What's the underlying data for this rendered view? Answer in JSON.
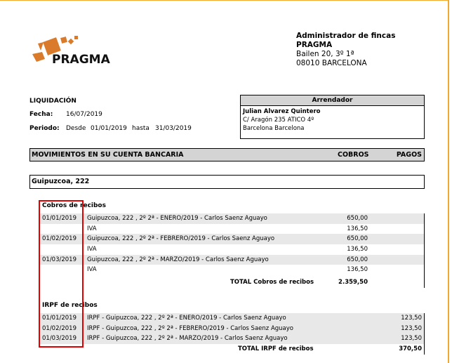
{
  "logo": {
    "text": "PRAGMA",
    "color": "#d97b2b"
  },
  "company": {
    "line1": "Administrador de fincas",
    "line2": "PRAGMA",
    "line3": "Bailen 20, 3º 1ª",
    "line4": "08010 BARCELONA"
  },
  "doc": {
    "title": "LIQUIDACIÓN",
    "fecha_label": "Fecha:",
    "fecha": "16/07/2019",
    "periodo_label": "Periodo:",
    "desde_label": "Desde",
    "desde": "01/01/2019",
    "hasta_label": "hasta",
    "hasta": "31/03/2019"
  },
  "arrendador": {
    "header": "Arrendador",
    "name": "Julian Alvarez Quintero",
    "address": "C/ Aragón 235 ATICO 4º",
    "city": "Barcelona Barcelona"
  },
  "movimientos": {
    "title": "MOVIMIENTOS EN SU CUENTA BANCARIA",
    "cobros": "COBROS",
    "pagos": "PAGOS"
  },
  "property": "Guipuzcoa, 222",
  "cobros": {
    "title": "Cobros de recibos",
    "rows": [
      {
        "date": "01/01/2019",
        "desc": "Guipuzcoa, 222 , 2º 2ª - ENERO/2019 - Carlos Saenz Aguayo",
        "amount": "650,00"
      },
      {
        "date": "",
        "desc": "IVA",
        "amount": "136,50"
      },
      {
        "date": "01/02/2019",
        "desc": "Guipuzcoa, 222 , 2º 2ª - FEBRERO/2019 - Carlos Saenz Aguayo",
        "amount": "650,00"
      },
      {
        "date": "",
        "desc": "IVA",
        "amount": "136,50"
      },
      {
        "date": "01/03/2019",
        "desc": "Guipuzcoa, 222 , 2º 2ª - MARZO/2019 - Carlos Saenz Aguayo",
        "amount": "650,00"
      },
      {
        "date": "",
        "desc": "IVA",
        "amount": "136,50"
      }
    ],
    "total_label": "TOTAL Cobros de recibos",
    "total": "2.359,50"
  },
  "irpf": {
    "title": "IRPF de recibos",
    "rows": [
      {
        "date": "01/01/2019",
        "desc": "IRPF - Guipuzcoa, 222 , 2º 2ª - ENERO/2019 - Carlos Saenz Aguayo",
        "amount": "123,50"
      },
      {
        "date": "01/02/2019",
        "desc": "IRPF - Guipuzcoa, 222 , 2º 2ª - FEBRERO/2019 - Carlos Saenz Aguayo",
        "amount": "123,50"
      },
      {
        "date": "01/03/2019",
        "desc": "IRPF - Guipuzcoa, 222 , 2º 2ª - MARZO/2019 - Carlos Saenz Aguayo",
        "amount": "123,50"
      }
    ],
    "total_label": "TOTAL IRPF de recibos",
    "total": "370,50"
  },
  "highlight_color": "#e00000"
}
